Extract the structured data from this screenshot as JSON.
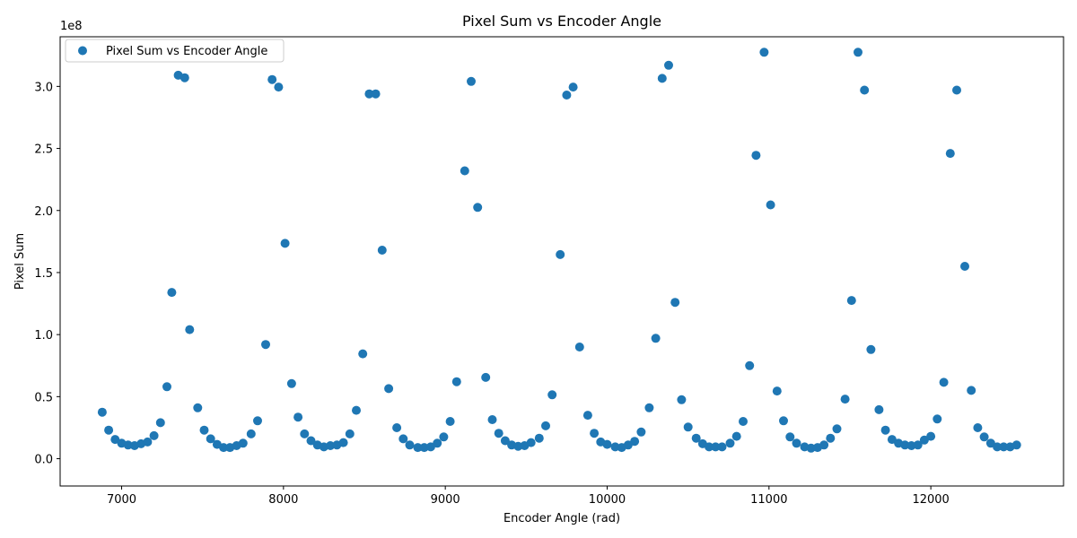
{
  "chart_data": {
    "type": "scatter",
    "title": "Pixel Sum vs Encoder Angle",
    "xlabel": "Encoder Angle (rad)",
    "ylabel": "Pixel Sum",
    "y_offset_label": "1e8",
    "xlim": [
      6620,
      12820
    ],
    "ylim": [
      -22000000.0,
      340000000.0
    ],
    "x_ticks": [
      7000,
      8000,
      9000,
      10000,
      11000,
      12000
    ],
    "x_tick_labels": [
      "7000",
      "8000",
      "9000",
      "10000",
      "11000",
      "12000"
    ],
    "y_ticks": [
      0,
      50000000,
      100000000,
      150000000,
      200000000,
      250000000,
      300000000
    ],
    "y_tick_labels": [
      "0.0",
      "0.5",
      "1.0",
      "1.5",
      "2.0",
      "2.5",
      "3.0"
    ],
    "grid": false,
    "legend_position": "top-left",
    "color": "#1f77b4",
    "series": [
      {
        "name": "Pixel Sum vs Encoder Angle",
        "x": [
          6880,
          6920,
          6960,
          7000,
          7040,
          7080,
          7120,
          7160,
          7200,
          7240,
          7280,
          7310,
          7350,
          7390,
          7420,
          7470,
          7510,
          7550,
          7590,
          7630,
          7670,
          7710,
          7750,
          7800,
          7840,
          7890,
          7930,
          7970,
          8010,
          8050,
          8090,
          8130,
          8170,
          8210,
          8250,
          8290,
          8330,
          8370,
          8410,
          8450,
          8490,
          8530,
          8570,
          8610,
          8650,
          8700,
          8740,
          8780,
          8830,
          8870,
          8910,
          8950,
          8990,
          9030,
          9070,
          9120,
          9160,
          9200,
          9250,
          9290,
          9330,
          9370,
          9410,
          9450,
          9490,
          9530,
          9580,
          9620,
          9660,
          9710,
          9750,
          9790,
          9830,
          9880,
          9920,
          9960,
          10000,
          10050,
          10090,
          10130,
          10170,
          10210,
          10260,
          10300,
          10340,
          10380,
          10420,
          10460,
          10500,
          10550,
          10590,
          10630,
          10670,
          10710,
          10760,
          10800,
          10840,
          10880,
          10920,
          10970,
          11010,
          11050,
          11090,
          11130,
          11170,
          11220,
          11260,
          11300,
          11340,
          11380,
          11420,
          11470,
          11510,
          11550,
          11590,
          11630,
          11680,
          11720,
          11760,
          11800,
          11840,
          11880,
          11920,
          11960,
          12000,
          12040,
          12080,
          12120,
          12160,
          12210,
          12250,
          12290,
          12330,
          12370,
          12410,
          12450,
          12490,
          12530
        ],
        "y": [
          37500000,
          23000000,
          15500000,
          12500000,
          11000000,
          10500000,
          12000000,
          13500000,
          18500000,
          29000000,
          58000000,
          134000000,
          309000000,
          307000000,
          104000000,
          41000000,
          23000000,
          16000000,
          11500000,
          9000000,
          9000000,
          10500000,
          12500000,
          20000000,
          30500000,
          92000000,
          305500000,
          299500000,
          173500000,
          60500000,
          33500000,
          20000000,
          14500000,
          11000000,
          9500000,
          10500000,
          11000000,
          13000000,
          20000000,
          39000000,
          84500000,
          294000000,
          294000000,
          168000000,
          56500000,
          25000000,
          16000000,
          11000000,
          9000000,
          9000000,
          9500000,
          12500000,
          17500000,
          30000000,
          62000000,
          232000000,
          304000000,
          202500000,
          65500000,
          31500000,
          20500000,
          14500000,
          11000000,
          10000000,
          10500000,
          13000000,
          16500000,
          26500000,
          51500000,
          164500000,
          293000000,
          299500000,
          90000000,
          35000000,
          20500000,
          13500000,
          11500000,
          9500000,
          9000000,
          11000000,
          14000000,
          21500000,
          41000000,
          97000000,
          306500000,
          317000000,
          126000000,
          47500000,
          25500000,
          16500000,
          12000000,
          9500000,
          9500000,
          9500000,
          12500000,
          18000000,
          30000000,
          75000000,
          244500000,
          327500000,
          204500000,
          54500000,
          30500000,
          17500000,
          12500000,
          9500000,
          8500000,
          9000000,
          11000000,
          16500000,
          24000000,
          48000000,
          127500000,
          327500000,
          297000000,
          88000000,
          39500000,
          23000000,
          15500000,
          12500000,
          11000000,
          10500000,
          11000000,
          15000000,
          18000000,
          32000000,
          61500000,
          246000000,
          297000000,
          155000000,
          55000000,
          25000000,
          17500000,
          12500000,
          9500000,
          9500000,
          9500000,
          11000000
        ]
      }
    ]
  }
}
